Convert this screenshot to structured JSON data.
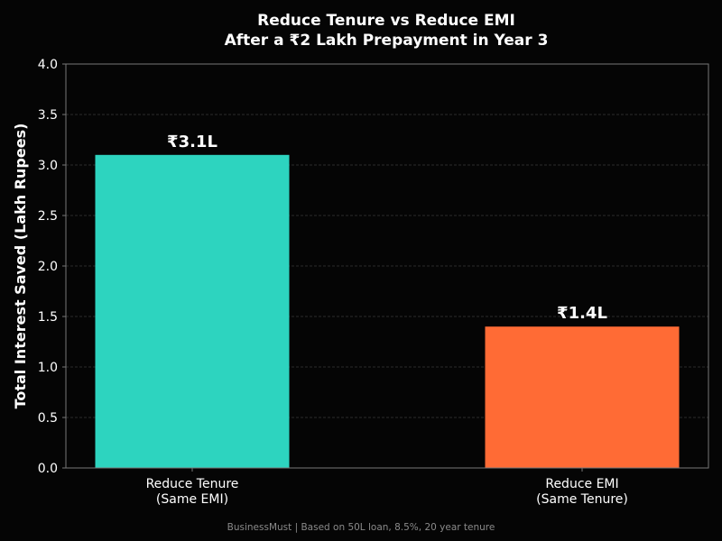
{
  "chart_data": {
    "type": "bar",
    "title": "Reduce Tenure vs Reduce EMI",
    "subtitle": "After a ₹2 Lakh Prepayment in Year 3",
    "xlabel": "",
    "ylabel": "Total Interest Saved (Lakh Rupees)",
    "ylim": [
      0,
      4.0
    ],
    "yticks": [
      "0.0",
      "0.5",
      "1.0",
      "1.5",
      "2.0",
      "2.5",
      "3.0",
      "3.5",
      "4.0"
    ],
    "grid": true,
    "categories": [
      [
        "Reduce Tenure",
        "(Same EMI)"
      ],
      [
        "Reduce EMI",
        "(Same Tenure)"
      ]
    ],
    "values": [
      3.1,
      1.4
    ],
    "data_labels": [
      "₹3.1L",
      "₹1.4L"
    ],
    "colors": [
      "#2dd4bf",
      "#ff6b35"
    ]
  },
  "footer": "BusinessMust  |  Based on 50L loan, 8.5%, 20 year tenure",
  "colors": {
    "background": "#050505",
    "axis": "#777777",
    "grid": "#3a3a3a",
    "text": "#ffffff",
    "footer": "#8a8a8a"
  }
}
